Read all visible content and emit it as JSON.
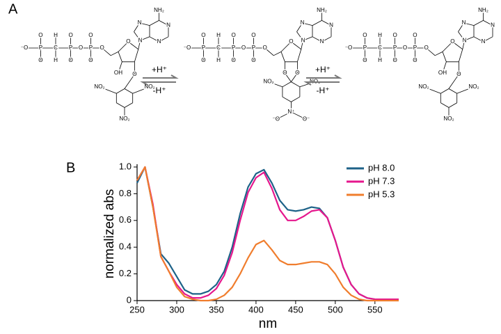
{
  "panels": [
    "A",
    "B"
  ],
  "molecules": [
    {
      "atoms": [
        "⁻O",
        "P",
        "O",
        "O",
        "H",
        "C",
        "H",
        "P",
        "O",
        "O",
        "O",
        "P",
        "O",
        "O",
        "O",
        "O",
        "N",
        "N",
        "N",
        "N",
        "NH₂",
        "OH",
        "O",
        "NO₂",
        "NO₂",
        "NO₂"
      ]
    },
    {
      "atoms": [
        "⁻O",
        "P",
        "O",
        "O",
        "H",
        "C",
        "H",
        "P",
        "O",
        "O",
        "O",
        "P",
        "O",
        "O",
        "O",
        "O",
        "N",
        "N",
        "N",
        "N",
        "NH₂",
        "O",
        "O",
        "NO₂",
        "NO₂",
        "N⁺",
        "⁻O",
        "O⁻"
      ]
    },
    {
      "atoms": [
        "⁻O",
        "P",
        "O",
        "O",
        "H",
        "C",
        "H",
        "P",
        "O",
        "O",
        "O",
        "P",
        "O",
        "O",
        "O",
        "O",
        "N",
        "N",
        "N",
        "N",
        "NH₂",
        "OH",
        "O",
        "NO₂",
        "NO₂",
        "NO₂"
      ]
    }
  ],
  "arrows": [
    {
      "forward": "+H⁺",
      "backward": "-H⁺"
    },
    {
      "forward": "+H⁺",
      "backward": "-H⁺"
    }
  ],
  "chart_data": {
    "type": "line",
    "y_label": "normalized abs",
    "x_label": "nm",
    "x": [
      250,
      260,
      270,
      280,
      290,
      300,
      310,
      320,
      330,
      340,
      350,
      360,
      370,
      380,
      390,
      400,
      410,
      420,
      430,
      440,
      450,
      460,
      470,
      480,
      490,
      500,
      510,
      520,
      530,
      540,
      550,
      560,
      570,
      580
    ],
    "series": [
      {
        "name": "pH 8.0",
        "color": "#1d6288",
        "values": [
          0.88,
          1.0,
          0.7,
          0.35,
          0.28,
          0.18,
          0.08,
          0.05,
          0.05,
          0.07,
          0.12,
          0.22,
          0.4,
          0.65,
          0.85,
          0.95,
          0.98,
          0.88,
          0.75,
          0.68,
          0.67,
          0.68,
          0.7,
          0.69,
          0.62,
          0.45,
          0.25,
          0.12,
          0.05,
          0.02,
          0.01,
          0.01,
          0.01,
          0.01
        ]
      },
      {
        "name": "pH 7.3",
        "color": "#e5178d",
        "values": [
          0.9,
          1.0,
          0.72,
          0.33,
          0.22,
          0.12,
          0.05,
          0.02,
          0.02,
          0.04,
          0.09,
          0.19,
          0.36,
          0.6,
          0.81,
          0.92,
          0.96,
          0.84,
          0.68,
          0.6,
          0.6,
          0.63,
          0.67,
          0.68,
          0.62,
          0.45,
          0.25,
          0.12,
          0.05,
          0.02,
          0.01,
          0.01,
          0.01,
          0.01
        ]
      },
      {
        "name": "pH 5.3",
        "color": "#f07d2d",
        "values": [
          0.9,
          1.0,
          0.7,
          0.33,
          0.22,
          0.1,
          0.03,
          0.01,
          0,
          0,
          0.01,
          0.04,
          0.1,
          0.2,
          0.32,
          0.42,
          0.45,
          0.38,
          0.3,
          0.27,
          0.27,
          0.28,
          0.29,
          0.29,
          0.27,
          0.2,
          0.1,
          0.04,
          0.01,
          0,
          0,
          0,
          0,
          0
        ]
      }
    ],
    "xlim": [
      250,
      580
    ],
    "ylim": [
      0,
      1
    ],
    "xticks": [
      250,
      300,
      350,
      400,
      450,
      500,
      550
    ],
    "yticks": [
      0,
      0.2,
      0.4,
      0.6,
      0.8,
      {
        "value": 1,
        "label": "1.0"
      }
    ],
    "legend": "upper right"
  }
}
